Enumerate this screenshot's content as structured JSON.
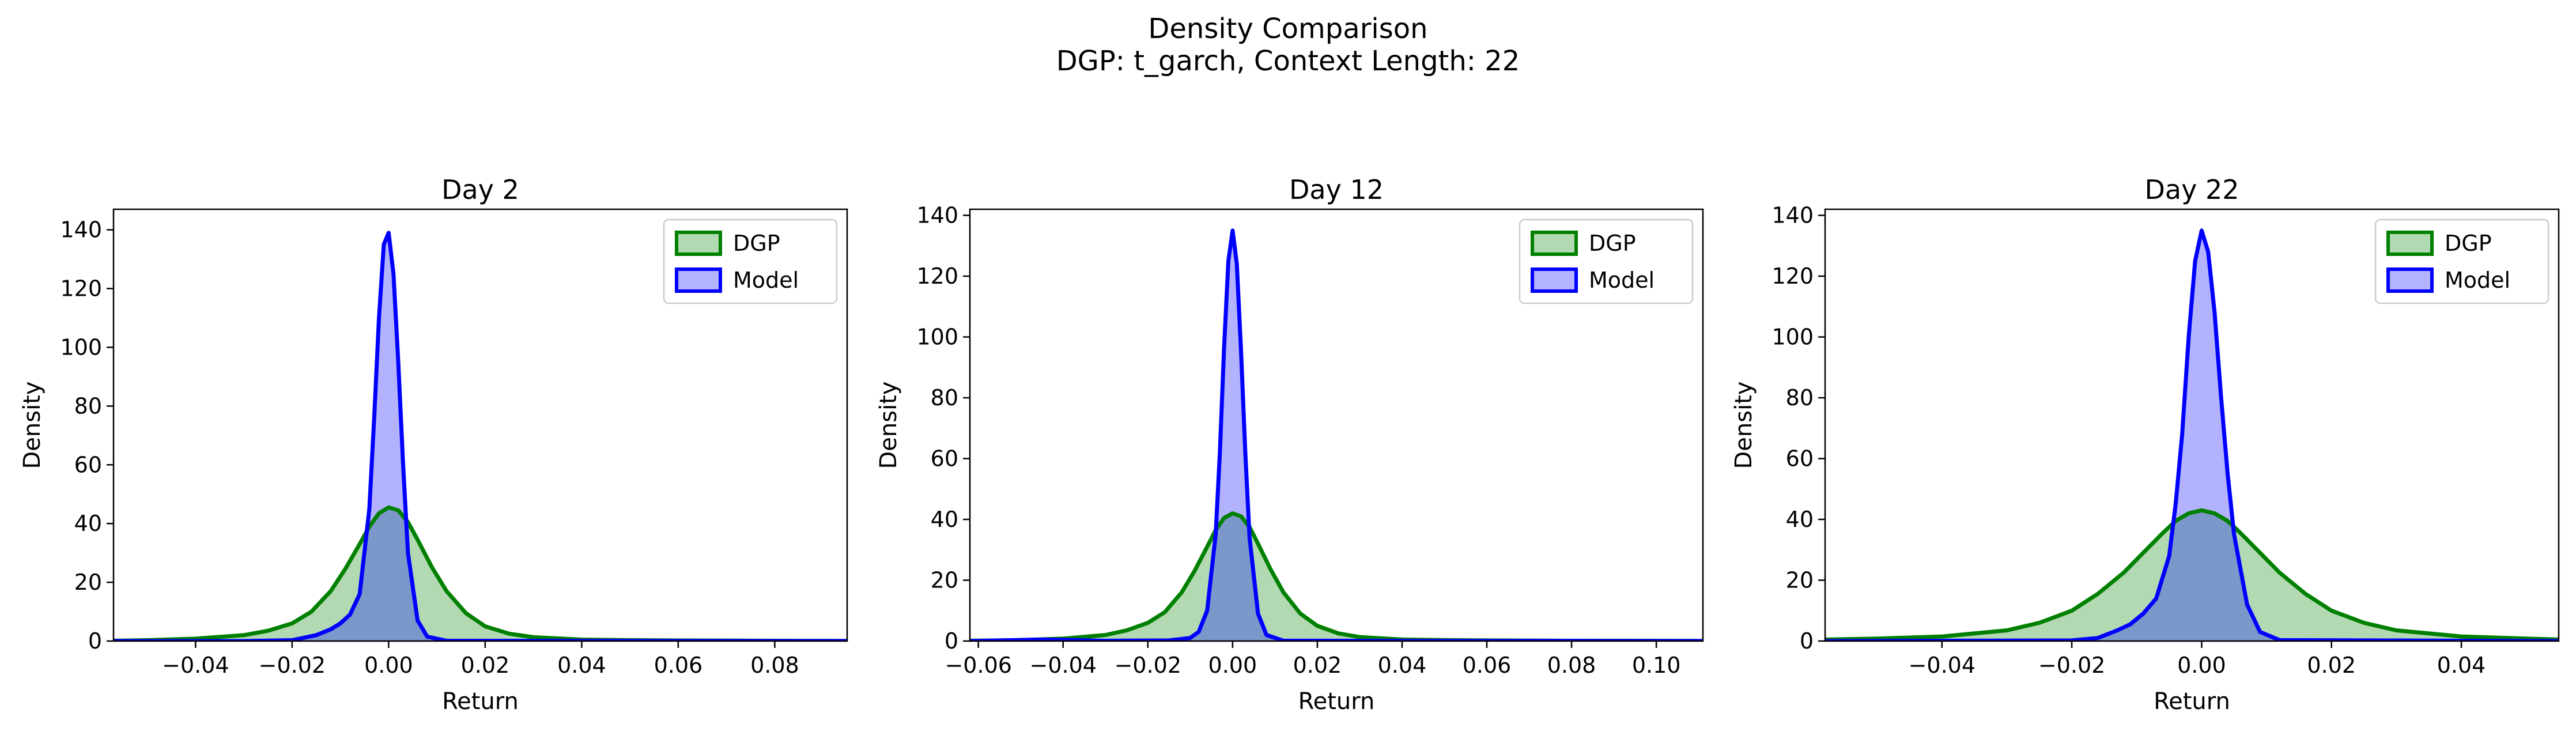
{
  "figure": {
    "suptitle_line1": "Density Comparison",
    "suptitle_line2": "DGP: t_garch, Context Length: 22"
  },
  "colors": {
    "dgp_line": "#008000",
    "dgp_fill": "#b2dab2",
    "model_line": "#0000ff",
    "model_fill": "#b3b3ff",
    "overlap_fill": "#7993c6"
  },
  "chart_data": [
    {
      "type": "area",
      "title": "Day 2",
      "xlabel": "Return",
      "ylabel": "Density",
      "xlim": [
        -0.057,
        0.095
      ],
      "ylim": [
        0,
        147
      ],
      "xticks": [
        -0.04,
        -0.02,
        0.0,
        0.02,
        0.04,
        0.06,
        0.08
      ],
      "xtick_labels": [
        "−0.04",
        "−0.02",
        "0.00",
        "0.02",
        "0.04",
        "0.06",
        "0.08"
      ],
      "yticks": [
        0,
        20,
        40,
        60,
        80,
        100,
        120,
        140
      ],
      "legend": {
        "placement": "top-right",
        "entries": [
          "DGP",
          "Model"
        ]
      },
      "grid": false,
      "series": [
        {
          "name": "DGP",
          "x": [
            -0.057,
            -0.05,
            -0.04,
            -0.03,
            -0.025,
            -0.02,
            -0.016,
            -0.012,
            -0.009,
            -0.006,
            -0.004,
            -0.002,
            0.0,
            0.002,
            0.004,
            0.006,
            0.009,
            0.012,
            0.016,
            0.02,
            0.025,
            0.03,
            0.04,
            0.05,
            0.06,
            0.08,
            0.095
          ],
          "y": [
            0.1,
            0.3,
            0.8,
            2.0,
            3.5,
            6.0,
            10.0,
            17.0,
            24.5,
            33.0,
            39.0,
            43.5,
            45.5,
            44.5,
            40.5,
            34.5,
            25.0,
            17.0,
            9.5,
            5.0,
            2.5,
            1.3,
            0.5,
            0.3,
            0.2,
            0.1,
            0.05
          ]
        },
        {
          "name": "Model",
          "x": [
            -0.057,
            -0.03,
            -0.02,
            -0.015,
            -0.012,
            -0.01,
            -0.008,
            -0.006,
            -0.004,
            -0.003,
            -0.002,
            -0.001,
            0.0,
            0.001,
            0.002,
            0.003,
            0.004,
            0.006,
            0.008,
            0.012,
            0.095
          ],
          "y": [
            0,
            0,
            0.3,
            2.0,
            4.0,
            6.0,
            9.0,
            16.0,
            45.0,
            76.0,
            110.0,
            135.0,
            139.0,
            125.0,
            95.0,
            60.0,
            30.0,
            7.0,
            1.5,
            0.1,
            0
          ]
        }
      ]
    },
    {
      "type": "area",
      "title": "Day 12",
      "xlabel": "Return",
      "ylabel": "Density",
      "xlim": [
        -0.062,
        0.111
      ],
      "ylim": [
        0,
        142
      ],
      "xticks": [
        -0.06,
        -0.04,
        -0.02,
        0.0,
        0.02,
        0.04,
        0.06,
        0.08,
        0.1
      ],
      "xtick_labels": [
        "−0.06",
        "−0.04",
        "−0.02",
        "0.00",
        "0.02",
        "0.04",
        "0.06",
        "0.08",
        "0.10"
      ],
      "yticks": [
        0,
        20,
        40,
        60,
        80,
        100,
        120,
        140
      ],
      "legend": {
        "placement": "top-right",
        "entries": [
          "DGP",
          "Model"
        ]
      },
      "grid": false,
      "series": [
        {
          "name": "DGP",
          "x": [
            -0.062,
            -0.05,
            -0.04,
            -0.03,
            -0.025,
            -0.02,
            -0.016,
            -0.012,
            -0.009,
            -0.006,
            -0.004,
            -0.002,
            0.0,
            0.002,
            0.004,
            0.006,
            0.009,
            0.012,
            0.016,
            0.02,
            0.025,
            0.03,
            0.04,
            0.05,
            0.06,
            0.08,
            0.111
          ],
          "y": [
            0.1,
            0.3,
            0.8,
            2.0,
            3.5,
            6.0,
            9.5,
            16.0,
            23.0,
            31.0,
            36.5,
            40.5,
            42.0,
            41.0,
            37.5,
            32.0,
            23.5,
            16.0,
            9.0,
            5.0,
            2.5,
            1.3,
            0.5,
            0.3,
            0.2,
            0.1,
            0.05
          ]
        },
        {
          "name": "Model",
          "x": [
            -0.062,
            -0.045,
            -0.04,
            -0.03,
            -0.015,
            -0.01,
            -0.008,
            -0.006,
            -0.004,
            -0.003,
            -0.002,
            -0.001,
            0.0,
            0.001,
            0.002,
            0.003,
            0.004,
            0.006,
            0.008,
            0.012,
            0.111
          ],
          "y": [
            0,
            0.5,
            0.4,
            0.1,
            0.2,
            1.0,
            3.0,
            10.0,
            35.0,
            62.0,
            97.0,
            125.0,
            135.0,
            124.0,
            95.0,
            62.0,
            34.0,
            9.0,
            2.0,
            0.1,
            0
          ]
        }
      ]
    },
    {
      "type": "area",
      "title": "Day 22",
      "xlabel": "Return",
      "ylabel": "Density",
      "xlim": [
        -0.058,
        0.055
      ],
      "ylim": [
        0,
        142
      ],
      "xticks": [
        -0.04,
        -0.02,
        0.0,
        0.02,
        0.04
      ],
      "xtick_labels": [
        "−0.04",
        "−0.02",
        "0.00",
        "0.02",
        "0.04"
      ],
      "yticks": [
        0,
        20,
        40,
        60,
        80,
        100,
        120,
        140
      ],
      "legend": {
        "placement": "top-right",
        "entries": [
          "DGP",
          "Model"
        ]
      },
      "grid": false,
      "series": [
        {
          "name": "DGP",
          "x": [
            -0.058,
            -0.05,
            -0.04,
            -0.03,
            -0.025,
            -0.02,
            -0.016,
            -0.012,
            -0.009,
            -0.006,
            -0.004,
            -0.002,
            0.0,
            0.002,
            0.004,
            0.006,
            0.009,
            0.012,
            0.016,
            0.02,
            0.025,
            0.03,
            0.04,
            0.05,
            0.055
          ],
          "y": [
            0.5,
            0.8,
            1.5,
            3.5,
            6.0,
            10.0,
            15.5,
            22.5,
            29.0,
            35.5,
            39.5,
            42.0,
            43.0,
            42.0,
            39.5,
            35.5,
            29.0,
            22.5,
            15.5,
            10.0,
            6.0,
            3.5,
            1.5,
            0.8,
            0.5
          ]
        },
        {
          "name": "Model",
          "x": [
            -0.058,
            -0.02,
            -0.016,
            -0.013,
            -0.011,
            -0.009,
            -0.007,
            -0.005,
            -0.004,
            -0.003,
            -0.002,
            -0.001,
            0.0,
            0.001,
            0.002,
            0.003,
            0.004,
            0.005,
            0.007,
            0.009,
            0.012,
            0.055
          ],
          "y": [
            0,
            0.2,
            1.0,
            3.5,
            5.5,
            9.0,
            14.0,
            28.0,
            45.0,
            68.0,
            100.0,
            125.0,
            135.0,
            128.0,
            108.0,
            80.0,
            55.0,
            35.0,
            12.0,
            3.0,
            0.3,
            0
          ]
        }
      ]
    }
  ]
}
